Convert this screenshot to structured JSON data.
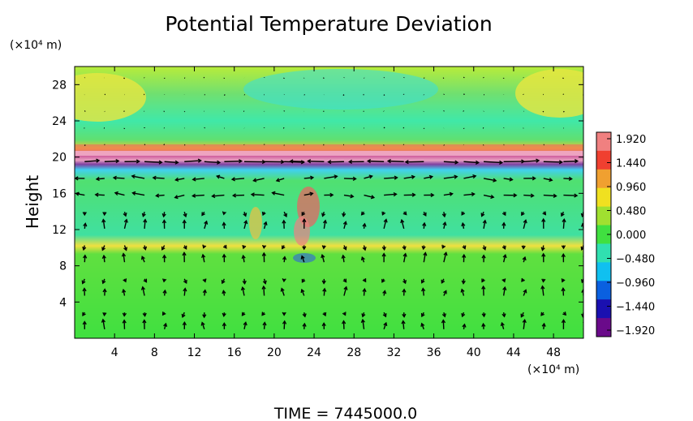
{
  "chart_data": {
    "type": "heatmap",
    "title": "Potential Temperature Deviation",
    "xlabel": "",
    "ylabel": "Height",
    "x_unit": "(×10⁴ m)",
    "y_unit": "(×10⁴ m)",
    "xlim": [
      0,
      51
    ],
    "ylim": [
      0,
      30
    ],
    "x_ticks": [
      4,
      8,
      12,
      16,
      20,
      24,
      28,
      32,
      36,
      40,
      44,
      48
    ],
    "y_ticks": [
      4,
      8,
      12,
      16,
      20,
      24,
      28
    ],
    "x_tick_labels": [
      "4",
      "8",
      "12",
      "16",
      "20",
      "24",
      "28",
      "32",
      "36",
      "40",
      "44",
      "48"
    ],
    "y_tick_labels": [
      "4",
      "8",
      "12",
      "16",
      "20",
      "24",
      "28"
    ],
    "colorbar": {
      "range": [
        -1.92,
        1.92
      ],
      "labels": [
        "1.920",
        "1.440",
        "0.960",
        "0.480",
        "0.000",
        "−0.480",
        "−0.960",
        "−1.440",
        "−1.920"
      ],
      "colors": [
        "#6a0a8a",
        "#1a10b0",
        "#0a60e0",
        "#10c0f0",
        "#30e0b0",
        "#40e040",
        "#a0e030",
        "#f0e020",
        "#f0a030",
        "#f04030",
        "#f08080"
      ]
    },
    "overlay": "wind vectors",
    "time_label": "TIME  =  7445000.0"
  }
}
